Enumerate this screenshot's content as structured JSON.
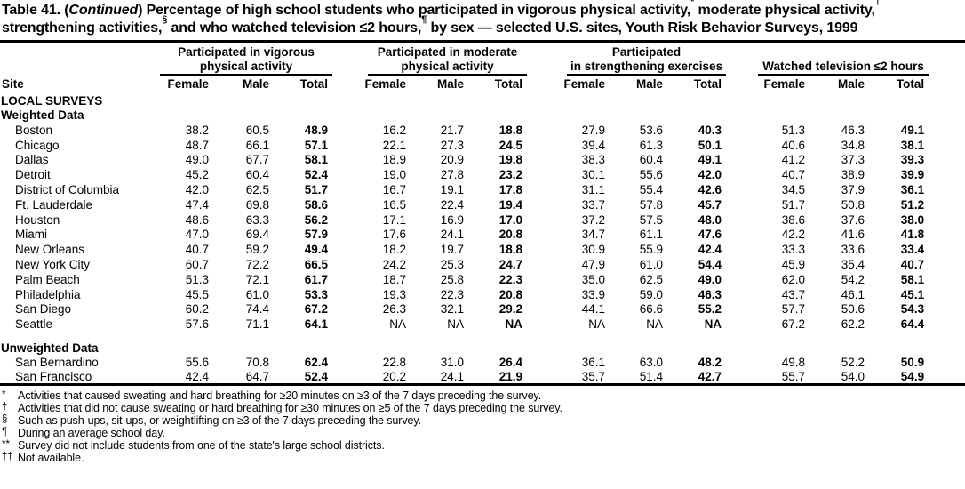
{
  "title": {
    "part1": "Table 41. (",
    "continued": "Continued",
    "part2": ") Percentage of high school students who participated in vigorous physical activity,",
    "sup1": "*",
    "part3": " moderate physical activity,",
    "sup2": "†",
    "part4": " strengthening activities,",
    "sup3": "§",
    "part5": " and who watched television ≤2 hours,",
    "sup4": "¶",
    "part6": " by sex — selected U.S. sites, Youth Risk Behavior Surveys, 1999"
  },
  "table": {
    "site_header": "Site",
    "groups": [
      {
        "lines": [
          "Participated in vigorous",
          "physical activity"
        ],
        "columns": [
          "Female",
          "Male",
          "Total"
        ]
      },
      {
        "lines": [
          "Participated in moderate",
          "physical activity"
        ],
        "columns": [
          "Female",
          "Male",
          "Total"
        ]
      },
      {
        "lines": [
          "Participated",
          "in strengthening exercises"
        ],
        "columns": [
          "Female",
          "Male",
          "Total"
        ]
      },
      {
        "lines": [
          "Watched television ≤2 hours"
        ],
        "columns": [
          "Female",
          "Male",
          "Total"
        ]
      }
    ],
    "rows": [
      {
        "type": "section",
        "label": "LOCAL SURVEYS"
      },
      {
        "type": "section",
        "label": "Weighted Data"
      },
      {
        "type": "data",
        "site": "Boston",
        "values": [
          "38.2",
          "60.5",
          "48.9",
          "16.2",
          "21.7",
          "18.8",
          "27.9",
          "53.6",
          "40.3",
          "51.3",
          "46.3",
          "49.1"
        ]
      },
      {
        "type": "data",
        "site": "Chicago",
        "values": [
          "48.7",
          "66.1",
          "57.1",
          "22.1",
          "27.3",
          "24.5",
          "39.4",
          "61.3",
          "50.1",
          "40.6",
          "34.8",
          "38.1"
        ]
      },
      {
        "type": "data",
        "site": "Dallas",
        "values": [
          "49.0",
          "67.7",
          "58.1",
          "18.9",
          "20.9",
          "19.8",
          "38.3",
          "60.4",
          "49.1",
          "41.2",
          "37.3",
          "39.3"
        ]
      },
      {
        "type": "data",
        "site": "Detroit",
        "values": [
          "45.2",
          "60.4",
          "52.4",
          "19.0",
          "27.8",
          "23.2",
          "30.1",
          "55.6",
          "42.0",
          "40.7",
          "38.9",
          "39.9"
        ]
      },
      {
        "type": "data",
        "site": "District of Columbia",
        "values": [
          "42.0",
          "62.5",
          "51.7",
          "16.7",
          "19.1",
          "17.8",
          "31.1",
          "55.4",
          "42.6",
          "34.5",
          "37.9",
          "36.1"
        ]
      },
      {
        "type": "data",
        "site": "Ft. Lauderdale",
        "values": [
          "47.4",
          "69.8",
          "58.6",
          "16.5",
          "22.4",
          "19.4",
          "33.7",
          "57.8",
          "45.7",
          "51.7",
          "50.8",
          "51.2"
        ]
      },
      {
        "type": "data",
        "site": "Houston",
        "values": [
          "48.6",
          "63.3",
          "56.2",
          "17.1",
          "16.9",
          "17.0",
          "37.2",
          "57.5",
          "48.0",
          "38.6",
          "37.6",
          "38.0"
        ]
      },
      {
        "type": "data",
        "site": "Miami",
        "values": [
          "47.0",
          "69.4",
          "57.9",
          "17.6",
          "24.1",
          "20.8",
          "34.7",
          "61.1",
          "47.6",
          "42.2",
          "41.6",
          "41.8"
        ]
      },
      {
        "type": "data",
        "site": "New Orleans",
        "values": [
          "40.7",
          "59.2",
          "49.4",
          "18.2",
          "19.7",
          "18.8",
          "30.9",
          "55.9",
          "42.4",
          "33.3",
          "33.6",
          "33.4"
        ]
      },
      {
        "type": "data",
        "site": "New York City",
        "values": [
          "60.7",
          "72.2",
          "66.5",
          "24.2",
          "25.3",
          "24.7",
          "47.9",
          "61.0",
          "54.4",
          "45.9",
          "35.4",
          "40.7"
        ]
      },
      {
        "type": "data",
        "site": "Palm Beach",
        "values": [
          "51.3",
          "72.1",
          "61.7",
          "18.7",
          "25.8",
          "22.3",
          "35.0",
          "62.5",
          "49.0",
          "62.0",
          "54.2",
          "58.1"
        ]
      },
      {
        "type": "data",
        "site": "Philadelphia",
        "values": [
          "45.5",
          "61.0",
          "53.3",
          "19.3",
          "22.3",
          "20.8",
          "33.9",
          "59.0",
          "46.3",
          "43.7",
          "46.1",
          "45.1"
        ]
      },
      {
        "type": "data",
        "site": "San Diego",
        "values": [
          "60.2",
          "74.4",
          "67.2",
          "26.3",
          "32.1",
          "29.2",
          "44.1",
          "66.6",
          "55.2",
          "57.7",
          "50.6",
          "54.3"
        ]
      },
      {
        "type": "data",
        "site": "Seattle",
        "values": [
          "57.6",
          "71.1",
          "64.1",
          "NA",
          "NA",
          "NA",
          "NA",
          "NA",
          "NA",
          "67.2",
          "62.2",
          "64.4"
        ]
      },
      {
        "type": "section",
        "label": "Unweighted Data",
        "gap": true
      },
      {
        "type": "data",
        "site": "San Bernardino",
        "values": [
          "55.6",
          "70.8",
          "62.4",
          "22.8",
          "31.0",
          "26.4",
          "36.1",
          "63.0",
          "48.2",
          "49.8",
          "52.2",
          "50.9"
        ]
      },
      {
        "type": "data",
        "site": "San Francisco",
        "values": [
          "42.4",
          "64.7",
          "52.4",
          "20.2",
          "24.1",
          "21.9",
          "35.7",
          "51.4",
          "42.7",
          "55.7",
          "54.0",
          "54.9"
        ]
      }
    ]
  },
  "footnotes": [
    {
      "marker": "*",
      "text": "Activities that caused sweating and hard breathing for ≥20 minutes on ≥3 of the 7 days preceding the survey."
    },
    {
      "marker": "†",
      "text": "Activities that did not cause sweating or hard breathing for ≥30 minutes on ≥5 of the 7 days preceding the survey."
    },
    {
      "marker": "§",
      "text": "Such as push-ups, sit-ups, or weightlifting on ≥3 of the 7 days preceding the survey."
    },
    {
      "marker": "¶",
      "text": "During an average school day."
    },
    {
      "marker": "**",
      "text": "Survey did not include students from one of the state's large school districts."
    },
    {
      "marker": "††",
      "text": "Not available."
    }
  ],
  "colors": {
    "text": "#000000",
    "background": "#ffffff",
    "rule": "#000000"
  }
}
